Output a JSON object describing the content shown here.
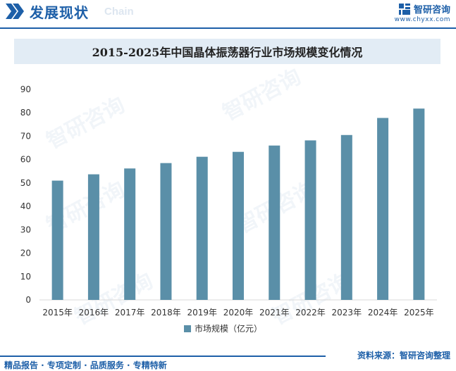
{
  "header": {
    "title": "发展现状",
    "subtitle": "Chain",
    "brand_name": "智研咨询",
    "brand_url": "www.chyxx.com"
  },
  "watermark_text": "智研咨询",
  "chart_data": {
    "type": "bar",
    "title": "2015-2025年中国晶体振荡器行业市场规模变化情况",
    "categories": [
      "2015年",
      "2016年",
      "2017年",
      "2018年",
      "2019年",
      "2020年",
      "2021年",
      "2022年",
      "2023年",
      "2024年",
      "2025年"
    ],
    "series": [
      {
        "name": "市场规模（亿元）",
        "values": [
          51,
          53.7,
          56.2,
          58.5,
          61.2,
          63.3,
          66,
          68.2,
          70.5,
          77.8,
          81.8
        ]
      }
    ],
    "ylim": [
      0,
      90
    ],
    "yticks": [
      0,
      10,
      20,
      30,
      40,
      50,
      60,
      70,
      80,
      90
    ],
    "grid": false,
    "legend_position": "bottom",
    "bar_color": "#5a8fa8"
  },
  "footer": {
    "left": "精品报告 · 专项定制 · 品质服务 · 专精特新",
    "source": "资料来源：智研咨询整理"
  }
}
